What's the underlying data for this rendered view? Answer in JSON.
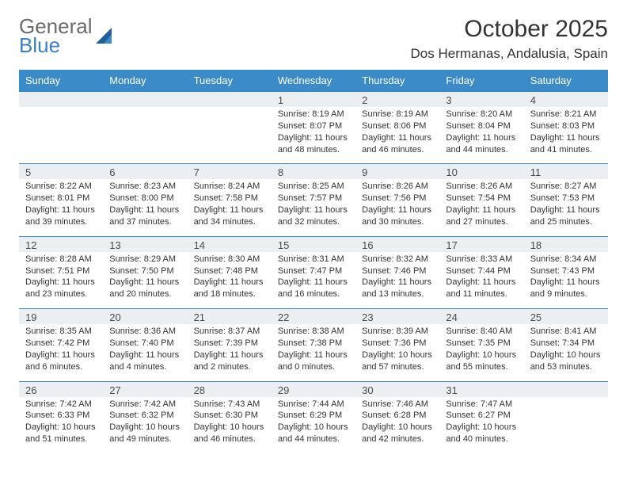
{
  "logo": {
    "line1": "General",
    "line2": "Blue"
  },
  "title": "October 2025",
  "location": "Dos Hermanas, Andalusia, Spain",
  "colors": {
    "header_bg": "#3b8bc9",
    "header_text": "#ffffff",
    "band_bg": "#eceff1",
    "band_border": "#3b8bc9",
    "text": "#333333",
    "logo_gray": "#6b6b6b",
    "logo_blue": "#3b7fc4"
  },
  "day_names": [
    "Sunday",
    "Monday",
    "Tuesday",
    "Wednesday",
    "Thursday",
    "Friday",
    "Saturday"
  ],
  "weeks": [
    [
      {
        "num": "",
        "lines": []
      },
      {
        "num": "",
        "lines": []
      },
      {
        "num": "",
        "lines": []
      },
      {
        "num": "1",
        "lines": [
          "Sunrise: 8:19 AM",
          "Sunset: 8:07 PM",
          "Daylight: 11 hours and 48 minutes."
        ]
      },
      {
        "num": "2",
        "lines": [
          "Sunrise: 8:19 AM",
          "Sunset: 8:06 PM",
          "Daylight: 11 hours and 46 minutes."
        ]
      },
      {
        "num": "3",
        "lines": [
          "Sunrise: 8:20 AM",
          "Sunset: 8:04 PM",
          "Daylight: 11 hours and 44 minutes."
        ]
      },
      {
        "num": "4",
        "lines": [
          "Sunrise: 8:21 AM",
          "Sunset: 8:03 PM",
          "Daylight: 11 hours and 41 minutes."
        ]
      }
    ],
    [
      {
        "num": "5",
        "lines": [
          "Sunrise: 8:22 AM",
          "Sunset: 8:01 PM",
          "Daylight: 11 hours and 39 minutes."
        ]
      },
      {
        "num": "6",
        "lines": [
          "Sunrise: 8:23 AM",
          "Sunset: 8:00 PM",
          "Daylight: 11 hours and 37 minutes."
        ]
      },
      {
        "num": "7",
        "lines": [
          "Sunrise: 8:24 AM",
          "Sunset: 7:58 PM",
          "Daylight: 11 hours and 34 minutes."
        ]
      },
      {
        "num": "8",
        "lines": [
          "Sunrise: 8:25 AM",
          "Sunset: 7:57 PM",
          "Daylight: 11 hours and 32 minutes."
        ]
      },
      {
        "num": "9",
        "lines": [
          "Sunrise: 8:26 AM",
          "Sunset: 7:56 PM",
          "Daylight: 11 hours and 30 minutes."
        ]
      },
      {
        "num": "10",
        "lines": [
          "Sunrise: 8:26 AM",
          "Sunset: 7:54 PM",
          "Daylight: 11 hours and 27 minutes."
        ]
      },
      {
        "num": "11",
        "lines": [
          "Sunrise: 8:27 AM",
          "Sunset: 7:53 PM",
          "Daylight: 11 hours and 25 minutes."
        ]
      }
    ],
    [
      {
        "num": "12",
        "lines": [
          "Sunrise: 8:28 AM",
          "Sunset: 7:51 PM",
          "Daylight: 11 hours and 23 minutes."
        ]
      },
      {
        "num": "13",
        "lines": [
          "Sunrise: 8:29 AM",
          "Sunset: 7:50 PM",
          "Daylight: 11 hours and 20 minutes."
        ]
      },
      {
        "num": "14",
        "lines": [
          "Sunrise: 8:30 AM",
          "Sunset: 7:48 PM",
          "Daylight: 11 hours and 18 minutes."
        ]
      },
      {
        "num": "15",
        "lines": [
          "Sunrise: 8:31 AM",
          "Sunset: 7:47 PM",
          "Daylight: 11 hours and 16 minutes."
        ]
      },
      {
        "num": "16",
        "lines": [
          "Sunrise: 8:32 AM",
          "Sunset: 7:46 PM",
          "Daylight: 11 hours and 13 minutes."
        ]
      },
      {
        "num": "17",
        "lines": [
          "Sunrise: 8:33 AM",
          "Sunset: 7:44 PM",
          "Daylight: 11 hours and 11 minutes."
        ]
      },
      {
        "num": "18",
        "lines": [
          "Sunrise: 8:34 AM",
          "Sunset: 7:43 PM",
          "Daylight: 11 hours and 9 minutes."
        ]
      }
    ],
    [
      {
        "num": "19",
        "lines": [
          "Sunrise: 8:35 AM",
          "Sunset: 7:42 PM",
          "Daylight: 11 hours and 6 minutes."
        ]
      },
      {
        "num": "20",
        "lines": [
          "Sunrise: 8:36 AM",
          "Sunset: 7:40 PM",
          "Daylight: 11 hours and 4 minutes."
        ]
      },
      {
        "num": "21",
        "lines": [
          "Sunrise: 8:37 AM",
          "Sunset: 7:39 PM",
          "Daylight: 11 hours and 2 minutes."
        ]
      },
      {
        "num": "22",
        "lines": [
          "Sunrise: 8:38 AM",
          "Sunset: 7:38 PM",
          "Daylight: 11 hours and 0 minutes."
        ]
      },
      {
        "num": "23",
        "lines": [
          "Sunrise: 8:39 AM",
          "Sunset: 7:36 PM",
          "Daylight: 10 hours and 57 minutes."
        ]
      },
      {
        "num": "24",
        "lines": [
          "Sunrise: 8:40 AM",
          "Sunset: 7:35 PM",
          "Daylight: 10 hours and 55 minutes."
        ]
      },
      {
        "num": "25",
        "lines": [
          "Sunrise: 8:41 AM",
          "Sunset: 7:34 PM",
          "Daylight: 10 hours and 53 minutes."
        ]
      }
    ],
    [
      {
        "num": "26",
        "lines": [
          "Sunrise: 7:42 AM",
          "Sunset: 6:33 PM",
          "Daylight: 10 hours and 51 minutes."
        ]
      },
      {
        "num": "27",
        "lines": [
          "Sunrise: 7:42 AM",
          "Sunset: 6:32 PM",
          "Daylight: 10 hours and 49 minutes."
        ]
      },
      {
        "num": "28",
        "lines": [
          "Sunrise: 7:43 AM",
          "Sunset: 6:30 PM",
          "Daylight: 10 hours and 46 minutes."
        ]
      },
      {
        "num": "29",
        "lines": [
          "Sunrise: 7:44 AM",
          "Sunset: 6:29 PM",
          "Daylight: 10 hours and 44 minutes."
        ]
      },
      {
        "num": "30",
        "lines": [
          "Sunrise: 7:46 AM",
          "Sunset: 6:28 PM",
          "Daylight: 10 hours and 42 minutes."
        ]
      },
      {
        "num": "31",
        "lines": [
          "Sunrise: 7:47 AM",
          "Sunset: 6:27 PM",
          "Daylight: 10 hours and 40 minutes."
        ]
      },
      {
        "num": "",
        "lines": []
      }
    ]
  ]
}
